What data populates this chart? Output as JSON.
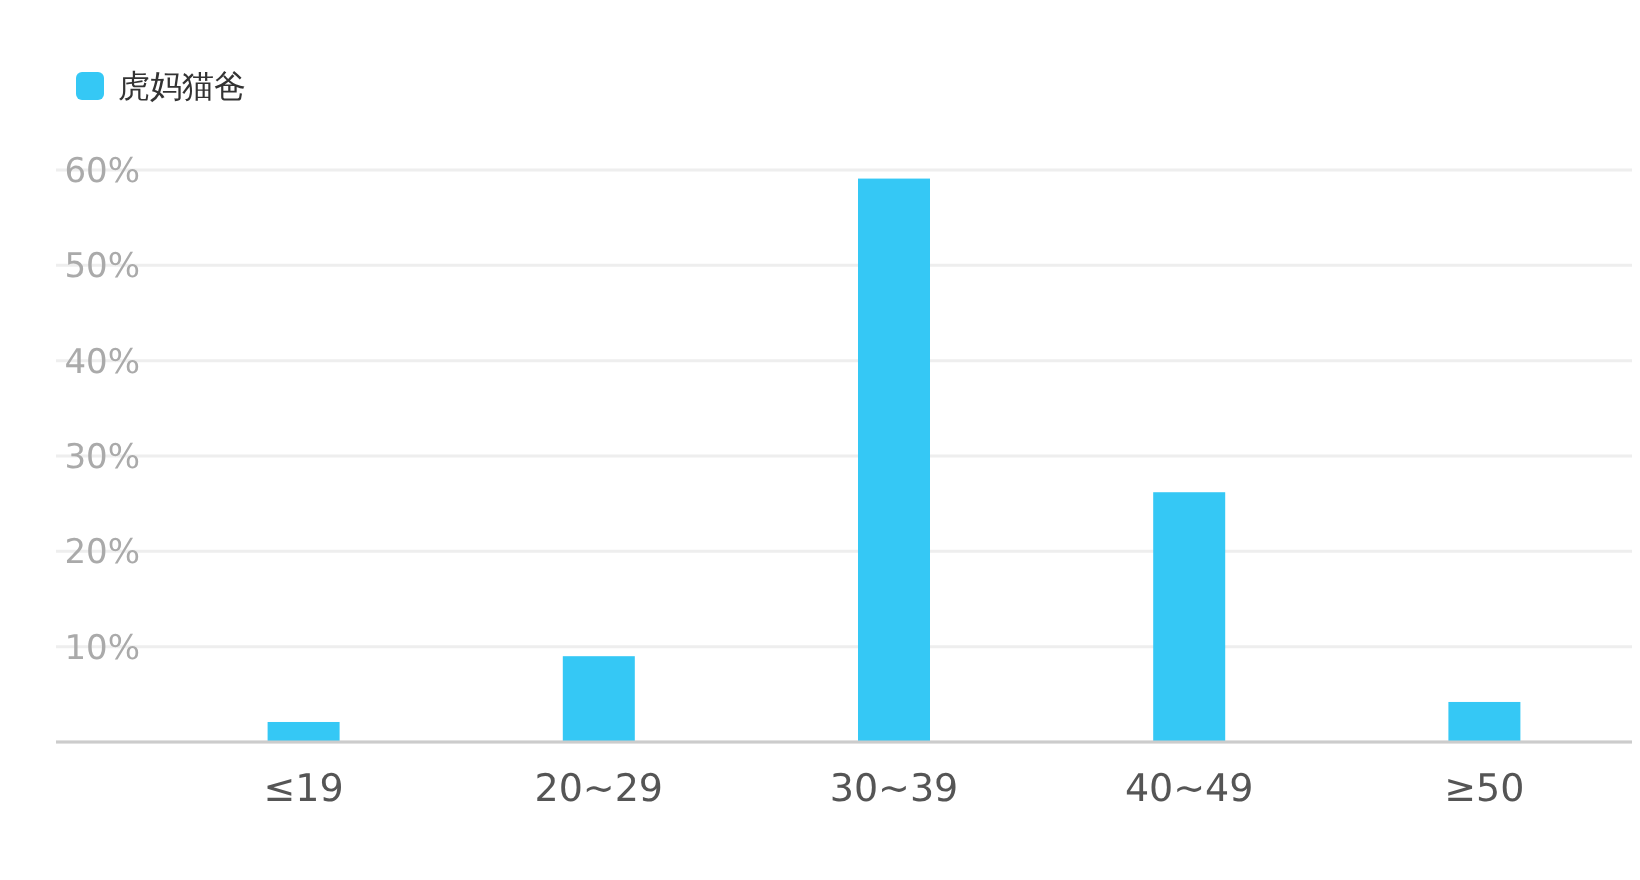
{
  "chart_data": {
    "type": "bar",
    "categories": [
      "≤19",
      "20~29",
      "30~39",
      "40~49",
      "≥50"
    ],
    "series": [
      {
        "name": "虎妈猫爸",
        "color": "#35c8f5",
        "values": [
          2.1,
          9,
          59.1,
          26.2,
          4.2
        ]
      }
    ],
    "ylim": [
      0,
      60
    ],
    "yticks": [
      {
        "value": 0,
        "label": null
      },
      {
        "value": 10,
        "label": "10%"
      },
      {
        "value": 20,
        "label": "20%"
      },
      {
        "value": 30,
        "label": "30%"
      },
      {
        "value": 40,
        "label": "40%"
      },
      {
        "value": 50,
        "label": "50%"
      },
      {
        "value": 60,
        "label": "60%"
      }
    ],
    "grid": "y",
    "legend": "top left"
  }
}
